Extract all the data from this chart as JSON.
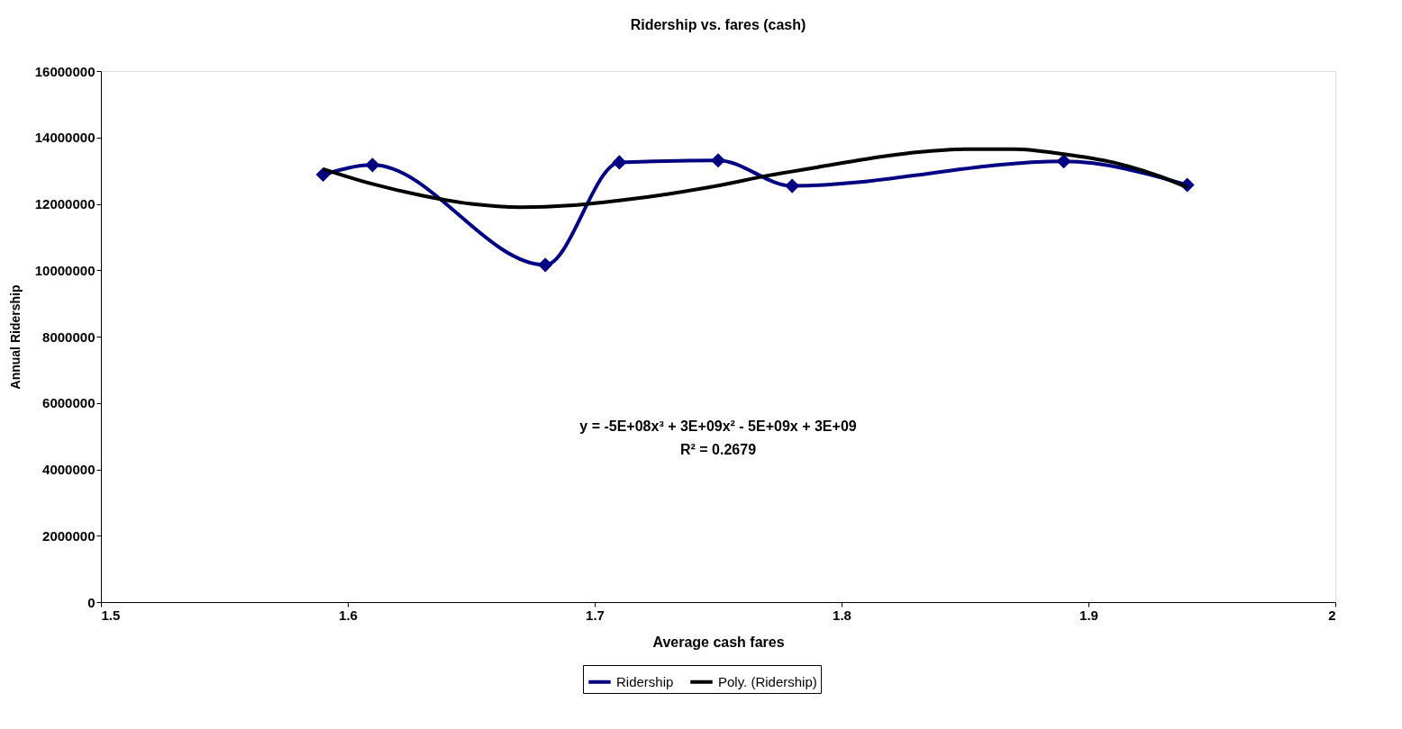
{
  "chart_data": {
    "type": "line",
    "title": "Ridership vs. fares (cash)",
    "xlabel": "Average cash fares",
    "ylabel": "Annual Ridership",
    "x": [
      1.59,
      1.61,
      1.68,
      1.71,
      1.75,
      1.78,
      1.89,
      1.94
    ],
    "series": [
      {
        "name": "Ridership",
        "color": "#000080",
        "marker": "diamond",
        "values": [
          12880000,
          13170000,
          10160000,
          13250000,
          13310000,
          12540000,
          13280000,
          12570000
        ]
      },
      {
        "name": "Poly. (Ridership)",
        "color": "#000000",
        "marker": "none",
        "x": [
          1.59,
          1.61,
          1.63,
          1.65,
          1.67,
          1.69,
          1.71,
          1.73,
          1.75,
          1.77,
          1.79,
          1.81,
          1.83,
          1.85,
          1.87,
          1.89,
          1.91,
          1.93,
          1.94
        ],
        "values": [
          13050000,
          12600000,
          12250000,
          12000000,
          11900000,
          11950000,
          12100000,
          12300000,
          12550000,
          12850000,
          13100000,
          13350000,
          13550000,
          13650000,
          13650000,
          13500000,
          13250000,
          12800000,
          12500000
        ]
      }
    ],
    "xlim": [
      1.5,
      2
    ],
    "xticks": [
      1.5,
      1.6,
      1.7,
      1.8,
      1.9,
      2
    ],
    "ylim": [
      0,
      16000000
    ],
    "yticks": [
      0,
      2000000,
      4000000,
      6000000,
      8000000,
      10000000,
      12000000,
      14000000,
      16000000
    ],
    "annotations": [
      "y = -5E+08x³ + 3E+09x² - 5E+09x + 3E+09",
      "R² = 0.2679"
    ],
    "legend": "bottom",
    "grid": false,
    "line_style": "solid"
  }
}
